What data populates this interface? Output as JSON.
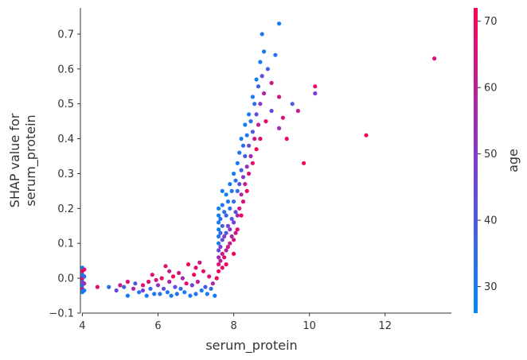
{
  "chart_data": {
    "type": "scatter",
    "title": "",
    "xlabel": "serum_protein",
    "ylabel_lines": [
      "SHAP value for",
      "serum_protein"
    ],
    "xlim": [
      3.95,
      13.75
    ],
    "ylim": [
      -0.1,
      0.775
    ],
    "x_ticks": [
      "4",
      "6",
      "8",
      "10",
      "12"
    ],
    "y_ticks": [
      "−0.1",
      "0.0",
      "0.1",
      "0.2",
      "0.3",
      "0.4",
      "0.5",
      "0.6",
      "0.7"
    ],
    "grid": false,
    "legend": "none",
    "colorbar": {
      "label": "age",
      "range": [
        26,
        72
      ],
      "ticks": [
        "30",
        "40",
        "50",
        "60",
        "70"
      ],
      "colors": [
        "#008afb",
        "#7d3bd4",
        "#ff0052"
      ]
    },
    "series": [
      {
        "values": [
          [
            4.0,
            0.03,
            28
          ],
          [
            4.0,
            0.02,
            70
          ],
          [
            4.0,
            0.01,
            32
          ],
          [
            4.0,
            0.0,
            66
          ],
          [
            4.0,
            -0.01,
            45
          ],
          [
            4.0,
            -0.02,
            30
          ],
          [
            4.0,
            -0.03,
            60
          ],
          [
            4.0,
            -0.04,
            29
          ],
          [
            4.05,
            0.025,
            68
          ],
          [
            4.05,
            0.005,
            35
          ],
          [
            4.05,
            -0.015,
            55
          ],
          [
            4.05,
            -0.035,
            31
          ],
          [
            4.4,
            -0.025,
            66
          ],
          [
            4.7,
            -0.025,
            33
          ],
          [
            4.9,
            -0.035,
            45
          ],
          [
            5.0,
            -0.02,
            62
          ],
          [
            5.1,
            -0.025,
            38
          ],
          [
            5.2,
            -0.01,
            66
          ],
          [
            5.2,
            -0.05,
            30
          ],
          [
            5.35,
            -0.03,
            58
          ],
          [
            5.4,
            -0.015,
            40
          ],
          [
            5.5,
            -0.04,
            32
          ],
          [
            5.6,
            -0.035,
            48
          ],
          [
            5.6,
            -0.02,
            67
          ],
          [
            5.7,
            -0.05,
            31
          ],
          [
            5.75,
            -0.01,
            66
          ],
          [
            5.8,
            -0.03,
            36
          ],
          [
            5.9,
            -0.045,
            30
          ],
          [
            5.95,
            -0.005,
            65
          ],
          [
            6.0,
            -0.02,
            52
          ],
          [
            6.05,
            -0.045,
            33
          ],
          [
            6.1,
            0.0,
            68
          ],
          [
            6.15,
            -0.03,
            44
          ],
          [
            6.2,
            0.035,
            66
          ],
          [
            6.25,
            -0.04,
            31
          ],
          [
            6.3,
            -0.01,
            57
          ],
          [
            6.35,
            -0.05,
            30
          ],
          [
            6.4,
            0.005,
            70
          ],
          [
            6.45,
            -0.025,
            42
          ],
          [
            6.5,
            -0.045,
            32
          ],
          [
            6.55,
            0.015,
            64
          ],
          [
            6.6,
            -0.03,
            36
          ],
          [
            6.65,
            0.0,
            55
          ],
          [
            6.7,
            -0.04,
            30
          ],
          [
            6.75,
            -0.015,
            66
          ],
          [
            6.8,
            0.04,
            69
          ],
          [
            6.85,
            -0.05,
            31
          ],
          [
            6.9,
            -0.02,
            47
          ],
          [
            6.95,
            0.01,
            70
          ],
          [
            7.0,
            -0.045,
            33
          ],
          [
            7.05,
            -0.01,
            60
          ],
          [
            7.1,
            0.045,
            64
          ],
          [
            7.15,
            -0.035,
            30
          ],
          [
            7.2,
            0.02,
            68
          ],
          [
            7.25,
            -0.025,
            40
          ],
          [
            7.3,
            -0.045,
            31
          ],
          [
            7.35,
            0.005,
            66
          ],
          [
            7.4,
            -0.03,
            35
          ],
          [
            7.45,
            -0.015,
            58
          ],
          [
            7.5,
            -0.05,
            30
          ],
          [
            7.55,
            0.0,
            69
          ],
          [
            5.85,
            0.01,
            66
          ],
          [
            6.3,
            0.02,
            61
          ],
          [
            7.0,
            0.03,
            67
          ],
          [
            7.6,
            0.18,
            30
          ],
          [
            7.6,
            0.16,
            31
          ],
          [
            7.6,
            0.14,
            29
          ],
          [
            7.6,
            0.12,
            32
          ],
          [
            7.6,
            0.1,
            30
          ],
          [
            7.6,
            0.08,
            45
          ],
          [
            7.6,
            0.06,
            55
          ],
          [
            7.6,
            0.04,
            66
          ],
          [
            7.6,
            0.02,
            70
          ],
          [
            7.6,
            0.2,
            28
          ],
          [
            7.65,
            0.17,
            33
          ],
          [
            7.65,
            0.13,
            36
          ],
          [
            7.65,
            0.09,
            48
          ],
          [
            7.65,
            0.05,
            60
          ],
          [
            7.7,
            0.25,
            29
          ],
          [
            7.7,
            0.21,
            31
          ],
          [
            7.7,
            0.15,
            38
          ],
          [
            7.7,
            0.11,
            44
          ],
          [
            7.7,
            0.07,
            62
          ],
          [
            7.7,
            0.03,
            68
          ],
          [
            7.75,
            0.19,
            34
          ],
          [
            7.75,
            0.12,
            50
          ],
          [
            7.75,
            0.06,
            66
          ],
          [
            7.8,
            0.24,
            30
          ],
          [
            7.8,
            0.18,
            37
          ],
          [
            7.8,
            0.13,
            42
          ],
          [
            7.8,
            0.08,
            58
          ],
          [
            7.8,
            0.04,
            70
          ],
          [
            7.85,
            0.22,
            32
          ],
          [
            7.85,
            0.15,
            46
          ],
          [
            7.85,
            0.09,
            64
          ],
          [
            7.9,
            0.27,
            29
          ],
          [
            7.9,
            0.2,
            35
          ],
          [
            7.9,
            0.14,
            52
          ],
          [
            7.9,
            0.1,
            61
          ],
          [
            7.95,
            0.25,
            31
          ],
          [
            7.95,
            0.17,
            40
          ],
          [
            7.95,
            0.12,
            57
          ],
          [
            8.0,
            0.3,
            30
          ],
          [
            8.0,
            0.22,
            34
          ],
          [
            8.0,
            0.16,
            48
          ],
          [
            8.0,
            0.11,
            66
          ],
          [
            8.0,
            0.07,
            70
          ],
          [
            8.05,
            0.28,
            33
          ],
          [
            8.05,
            0.19,
            44
          ],
          [
            8.05,
            0.13,
            62
          ],
          [
            8.1,
            0.33,
            29
          ],
          [
            8.1,
            0.25,
            36
          ],
          [
            8.1,
            0.18,
            55
          ],
          [
            8.1,
            0.14,
            68
          ],
          [
            8.15,
            0.36,
            31
          ],
          [
            8.15,
            0.27,
            42
          ],
          [
            8.15,
            0.2,
            63
          ],
          [
            8.2,
            0.4,
            30
          ],
          [
            8.2,
            0.31,
            38
          ],
          [
            8.2,
            0.24,
            58
          ],
          [
            8.2,
            0.18,
            70
          ],
          [
            8.25,
            0.38,
            35
          ],
          [
            8.25,
            0.29,
            50
          ],
          [
            8.25,
            0.22,
            66
          ],
          [
            8.3,
            0.44,
            29
          ],
          [
            8.3,
            0.35,
            40
          ],
          [
            8.3,
            0.27,
            60
          ],
          [
            8.35,
            0.41,
            33
          ],
          [
            8.35,
            0.32,
            54
          ],
          [
            8.35,
            0.25,
            69
          ],
          [
            8.4,
            0.47,
            31
          ],
          [
            8.4,
            0.38,
            45
          ],
          [
            8.4,
            0.3,
            64
          ],
          [
            8.45,
            0.45,
            36
          ],
          [
            8.45,
            0.35,
            57
          ],
          [
            8.5,
            0.52,
            30
          ],
          [
            8.5,
            0.42,
            41
          ],
          [
            8.5,
            0.33,
            67
          ],
          [
            8.55,
            0.5,
            34
          ],
          [
            8.55,
            0.4,
            62
          ],
          [
            8.6,
            0.57,
            29
          ],
          [
            8.6,
            0.47,
            44
          ],
          [
            8.6,
            0.37,
            70
          ],
          [
            8.65,
            0.55,
            38
          ],
          [
            8.65,
            0.44,
            60
          ],
          [
            8.7,
            0.62,
            31
          ],
          [
            8.7,
            0.5,
            51
          ],
          [
            8.7,
            0.4,
            66
          ],
          [
            8.75,
            0.58,
            43
          ],
          [
            8.8,
            0.65,
            30
          ],
          [
            8.8,
            0.53,
            58
          ],
          [
            8.85,
            0.45,
            68
          ],
          [
            8.9,
            0.6,
            37
          ],
          [
            9.0,
            0.56,
            62
          ],
          [
            9.0,
            0.48,
            45
          ],
          [
            9.1,
            0.64,
            33
          ],
          [
            9.2,
            0.52,
            64
          ],
          [
            9.2,
            0.43,
            55
          ],
          [
            8.75,
            0.7,
            32
          ],
          [
            9.2,
            0.73,
            30
          ],
          [
            9.3,
            0.46,
            66
          ],
          [
            9.4,
            0.4,
            68
          ],
          [
            9.55,
            0.5,
            40
          ],
          [
            9.7,
            0.48,
            62
          ],
          [
            9.85,
            0.33,
            70
          ],
          [
            10.15,
            0.55,
            68
          ],
          [
            10.15,
            0.53,
            50
          ],
          [
            11.5,
            0.41,
            70
          ],
          [
            13.3,
            0.63,
            66
          ]
        ]
      }
    ]
  }
}
